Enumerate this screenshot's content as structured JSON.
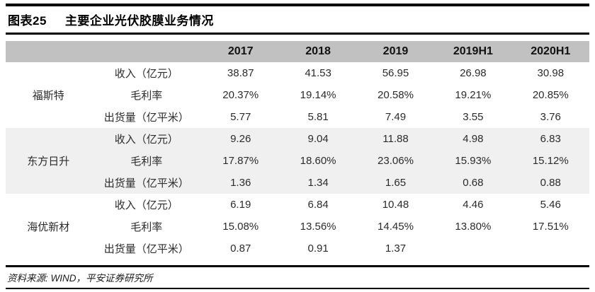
{
  "title": {
    "figure_label": "图表25",
    "text": "主要企业光伏胶膜业务情况"
  },
  "footer": {
    "source": "资料来源: WIND，平安证券研究所"
  },
  "colors": {
    "header_bg": "#c1c1c1",
    "shaded_block_bg": "#f0f0f0",
    "rule": "#000000"
  },
  "chart_data": {
    "type": "table",
    "title": "主要企业光伏胶膜业务情况",
    "figure_label": "图表25",
    "columns": [
      "2017",
      "2018",
      "2019",
      "2019H1",
      "2020H1"
    ],
    "row_groups": [
      {
        "name": "福斯特",
        "rows": [
          {
            "metric": "收入（亿元）",
            "values": [
              "38.87",
              "41.53",
              "56.95",
              "26.98",
              "30.98"
            ]
          },
          {
            "metric": "毛利率",
            "values": [
              "20.37%",
              "19.14%",
              "20.58%",
              "19.21%",
              "20.85%"
            ]
          },
          {
            "metric": "出货量（亿平米）",
            "values": [
              "5.77",
              "5.81",
              "7.49",
              "3.55",
              "3.76"
            ]
          }
        ]
      },
      {
        "name": "东方日升",
        "rows": [
          {
            "metric": "收入（亿元）",
            "values": [
              "9.26",
              "9.04",
              "11.88",
              "4.98",
              "6.83"
            ]
          },
          {
            "metric": "毛利率",
            "values": [
              "17.87%",
              "18.60%",
              "23.06%",
              "15.93%",
              "15.12%"
            ]
          },
          {
            "metric": "出货量（亿平米）",
            "values": [
              "1.36",
              "1.34",
              "1.65",
              "0.68",
              "0.88"
            ]
          }
        ]
      },
      {
        "name": "海优新材",
        "rows": [
          {
            "metric": "收入（亿元）",
            "values": [
              "6.19",
              "6.84",
              "10.48",
              "4.46",
              "5.46"
            ]
          },
          {
            "metric": "毛利率",
            "values": [
              "15.08%",
              "13.56%",
              "14.45%",
              "13.80%",
              "17.51%"
            ]
          },
          {
            "metric": "出货量（亿平米）",
            "values": [
              "0.87",
              "0.91",
              "1.37",
              "",
              ""
            ]
          }
        ]
      }
    ],
    "source": "资料来源: WIND，平安证券研究所"
  }
}
